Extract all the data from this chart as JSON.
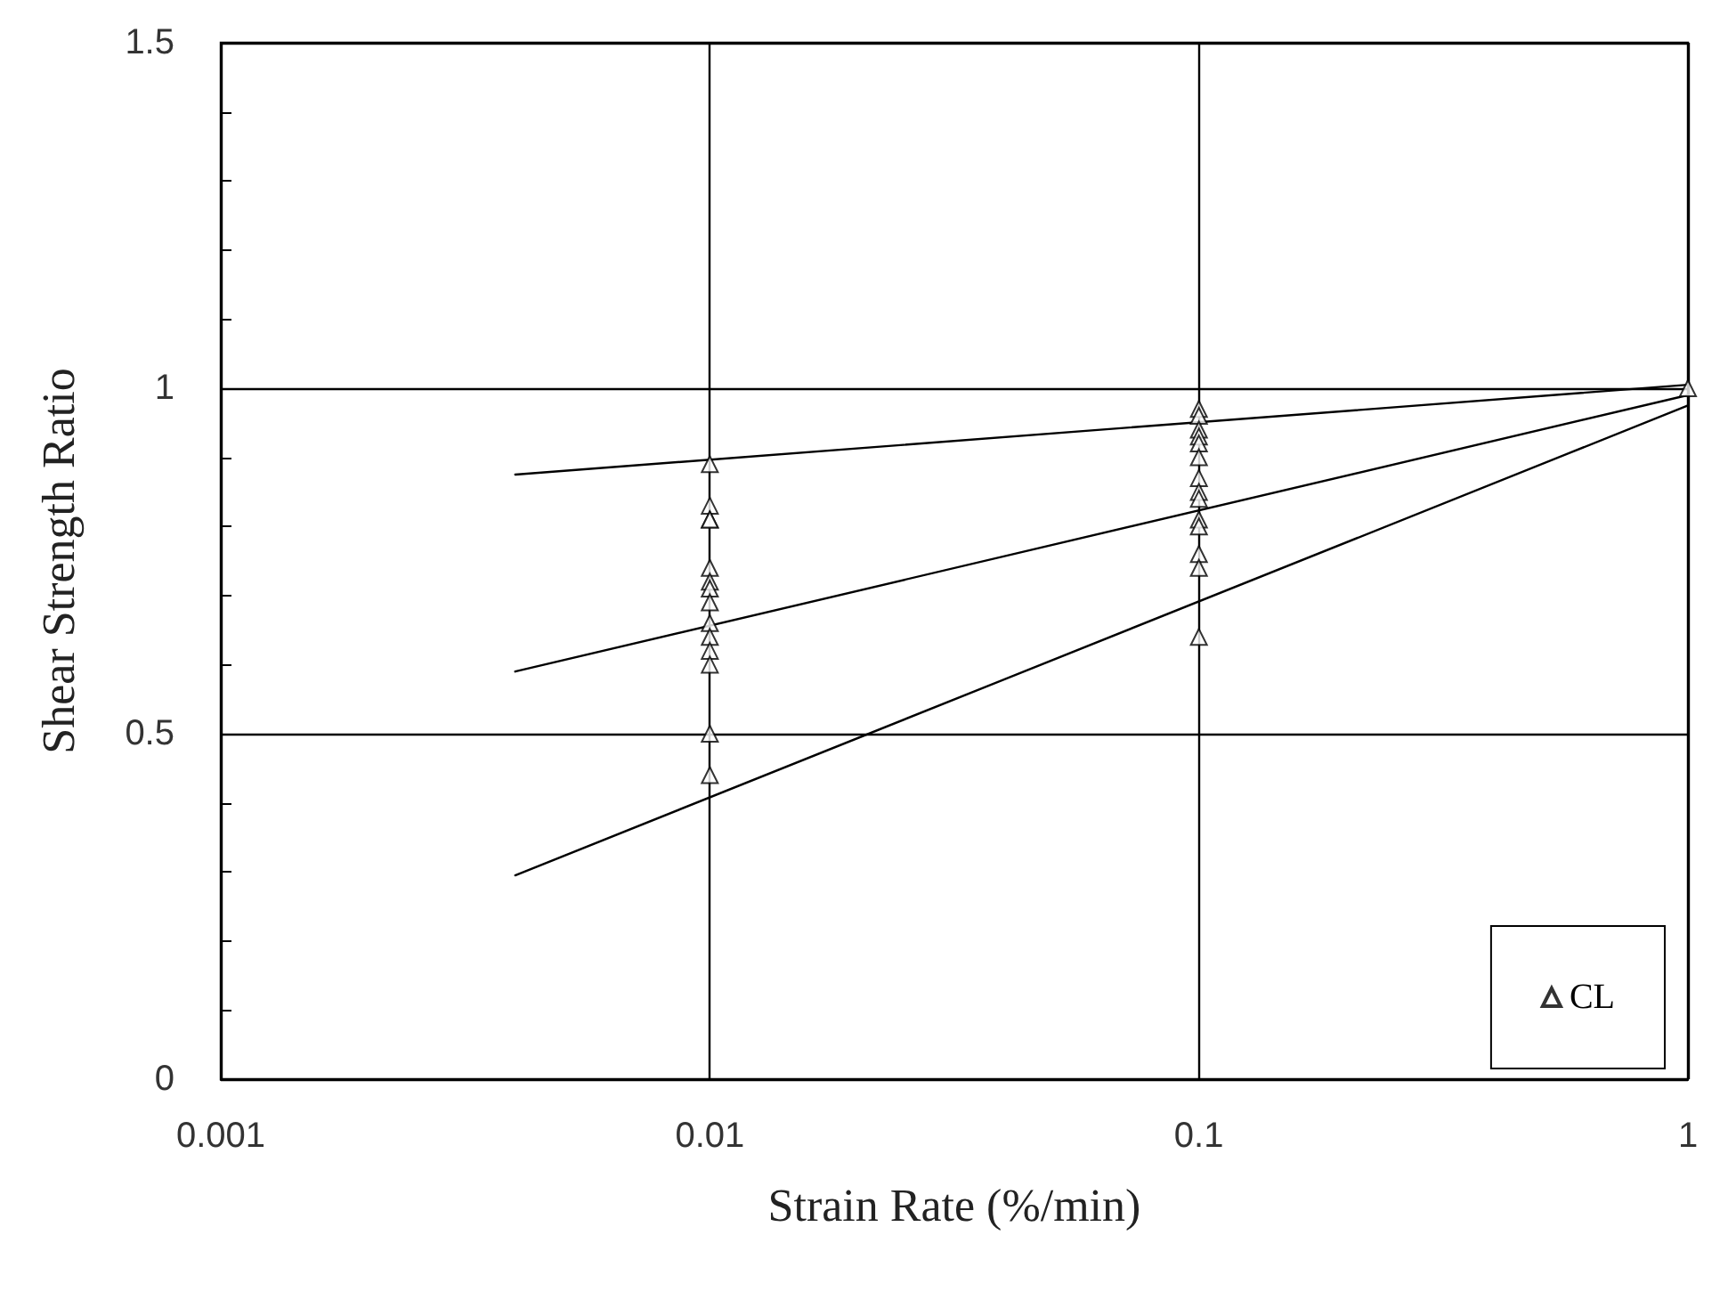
{
  "chart_data": {
    "type": "scatter",
    "xlabel": "Strain Rate (%/min)",
    "ylabel": "Shear Strength Ratio",
    "log": "x",
    "xlim": [
      0.001,
      1
    ],
    "xticks": [
      0.001,
      0.01,
      0.1,
      1
    ],
    "ylim": [
      0,
      1.5
    ],
    "yticks": [
      0,
      {
        "value": 0.1,
        "label": null
      },
      {
        "value": 0.2,
        "label": null
      },
      {
        "value": 0.3,
        "label": null
      },
      {
        "value": 0.4,
        "label": null
      },
      0.5,
      {
        "value": 0.6,
        "label": null
      },
      {
        "value": 0.7,
        "label": null
      },
      {
        "value": 0.8,
        "label": null
      },
      {
        "value": 0.9,
        "label": null
      },
      1,
      {
        "value": 1.1,
        "label": null
      },
      {
        "value": 1.2,
        "label": null
      },
      {
        "value": 1.3,
        "label": null
      },
      {
        "value": 1.4,
        "label": null
      },
      1.5
    ],
    "grid": true,
    "legend": "bottom right",
    "series": [
      {
        "name": "CL",
        "marker": "triangle",
        "color": "#000000",
        "x": [
          0.01,
          0.01,
          0.01,
          0.01,
          0.01,
          0.01,
          0.01,
          0.01,
          0.01,
          0.01,
          0.01,
          0.01,
          0.01,
          0.01,
          0.1,
          0.1,
          0.1,
          0.1,
          0.1,
          0.1,
          0.1,
          0.1,
          0.1,
          0.1,
          0.1,
          0.1,
          0.1,
          0.1,
          1
        ],
        "values": [
          0.89,
          0.83,
          0.81,
          0.81,
          0.74,
          0.72,
          0.71,
          0.69,
          0.66,
          0.64,
          0.62,
          0.6,
          0.5,
          0.44,
          0.97,
          0.96,
          0.94,
          0.93,
          0.92,
          0.9,
          0.87,
          0.85,
          0.84,
          0.81,
          0.8,
          0.76,
          0.74,
          0.64,
          1.0
        ]
      },
      {
        "type": "line",
        "marker": "none",
        "color": "#000000",
        "x": [
          0.004,
          1
        ],
        "values": [
          0.875,
          1.005
        ]
      },
      {
        "type": "line",
        "marker": "none",
        "color": "#000000",
        "x": [
          0.004,
          1
        ],
        "values": [
          0.59,
          0.99
        ]
      },
      {
        "type": "line",
        "marker": "none",
        "color": "#000000",
        "x": [
          0.004,
          1
        ],
        "values": [
          0.295,
          0.975
        ]
      }
    ]
  }
}
